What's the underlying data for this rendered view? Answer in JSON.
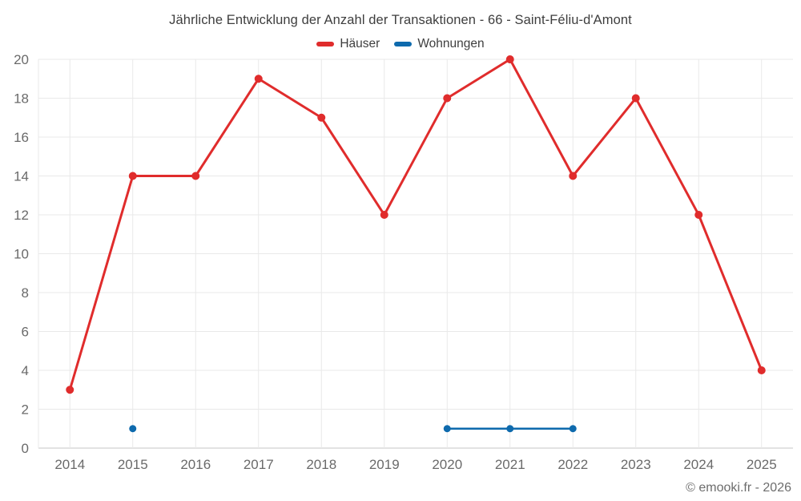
{
  "header": {
    "title": "Jährliche Entwicklung der Anzahl der Transaktionen - 66 - Saint-Féliu-d'Amont"
  },
  "footer": {
    "copyright": "© emooki.fr - 2026"
  },
  "colors": {
    "haeuser_red": "#e02c2c",
    "wohnungen_blue": "#0e6aad",
    "grid": "#e9e9e9",
    "axis_line": "#c6c6c6",
    "tick_text": "#6a6a6a",
    "title_text": "#3e3e3e"
  },
  "chart_data": {
    "type": "line",
    "title": "Jährliche Entwicklung der Anzahl der Transaktionen - 66 - Saint-Féliu-d'Amont",
    "categories": [
      "2014",
      "2015",
      "2016",
      "2017",
      "2018",
      "2019",
      "2020",
      "2021",
      "2022",
      "2023",
      "2024",
      "2025"
    ],
    "series": [
      {
        "name": "Häuser",
        "color": "#e02c2c",
        "values": [
          3,
          14,
          14,
          19,
          17,
          12,
          18,
          20,
          14,
          18,
          12,
          4
        ]
      },
      {
        "name": "Wohnungen",
        "color": "#0e6aad",
        "values": [
          null,
          1,
          null,
          null,
          null,
          null,
          1,
          1,
          1,
          null,
          null,
          null
        ]
      }
    ],
    "xlabel": "",
    "ylabel": "",
    "ylim": [
      0,
      20
    ],
    "yticks": [
      0,
      2,
      4,
      6,
      8,
      10,
      12,
      14,
      16,
      18,
      20
    ],
    "grid": true,
    "legend_position": "top"
  }
}
